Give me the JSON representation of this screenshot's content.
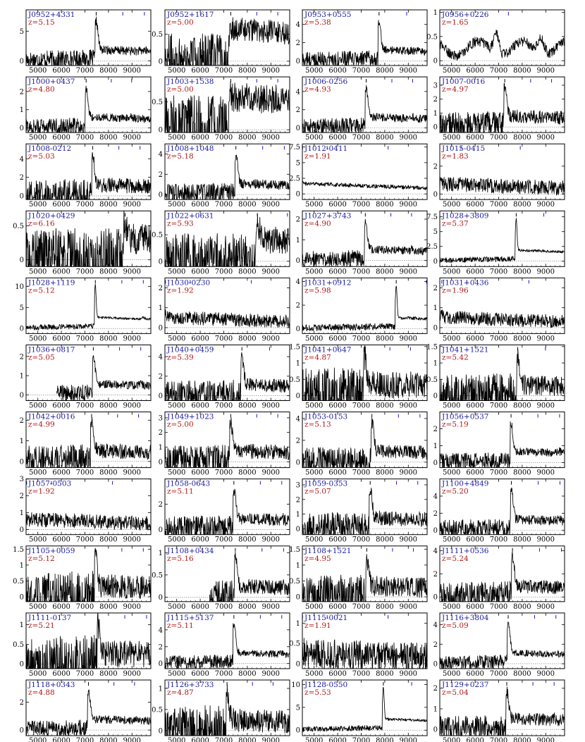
{
  "chart_data": {
    "type": "line",
    "layout": "grid 11 rows x 4 columns",
    "xlim": [
      4500,
      9800
    ],
    "x_ticks": [
      5000,
      6000,
      7000,
      8000,
      9000
    ],
    "y_zero_line": "dotted",
    "colors": {
      "name": "#1a1aa0",
      "redshift": "#b01818",
      "markers": "#1a1ac8",
      "spectrum": "#000000"
    },
    "panels": [
      {
        "name": "J0952+4331",
        "z_label": "z=5.15",
        "z": 5.15,
        "ylim": [
          -0.8,
          8.6
        ],
        "yticks": [
          0,
          5
        ],
        "ystart": 4500,
        "noise": 0.13
      },
      {
        "name": "J0952+1617",
        "z_label": "z=5.00",
        "z": 5.0,
        "ylim": [
          -0.08,
          0.95
        ],
        "yticks": [
          0.0,
          0.5
        ],
        "ystart": 4500,
        "noise": 0.35,
        "mode": "step"
      },
      {
        "name": "J0953+0555",
        "z_label": "z=5.38",
        "z": 5.38,
        "ylim": [
          -0.5,
          5.6
        ],
        "yticks": [
          0,
          2,
          4
        ],
        "ystart": 4500,
        "noise": 0.12
      },
      {
        "name": "J0956+0226",
        "z_label": "z=1.65",
        "z": 1.65,
        "ylim": [
          -0.1,
          1.05
        ],
        "yticks": [
          0.0,
          0.5,
          1.0
        ],
        "ystart": 4500,
        "noise": 0.15,
        "mode": "lowz"
      },
      {
        "name": "J1000+0437",
        "z_label": "z=4.80",
        "z": 4.8,
        "ylim": [
          -0.25,
          2.8
        ],
        "yticks": [
          0,
          1,
          2
        ],
        "ystart": 4500,
        "noise": 0.12
      },
      {
        "name": "J1003+1538",
        "z_label": "z=5.00",
        "z": 5.0,
        "ylim": [
          -0.05,
          0.95
        ],
        "yticks": [
          0.0,
          0.5
        ],
        "ystart": 4500,
        "noise": 0.45,
        "mode": "step"
      },
      {
        "name": "J1006-0256",
        "z_label": "z=4.93",
        "z": 4.93,
        "ylim": [
          -0.5,
          5.6
        ],
        "yticks": [
          0,
          2,
          4
        ],
        "ystart": 4500,
        "noise": 0.12
      },
      {
        "name": "J1007-0016",
        "z_label": "z=4.97",
        "z": 4.97,
        "ylim": [
          -0.4,
          3.6
        ],
        "yticks": [
          0,
          1,
          2,
          3
        ],
        "ystart": 4500,
        "noise": 0.2
      },
      {
        "name": "J1008-0212",
        "z_label": "z=5.03",
        "z": 5.03,
        "ylim": [
          -0.4,
          5.6
        ],
        "yticks": [
          0,
          2,
          4
        ],
        "ystart": 4500,
        "noise": 0.22
      },
      {
        "name": "J1008+1048",
        "z_label": "z=5.18",
        "z": 5.18,
        "ylim": [
          -0.5,
          5.0
        ],
        "yticks": [
          0,
          2,
          4
        ],
        "ystart": 4500,
        "noise": 0.14
      },
      {
        "name": "J1012-0411",
        "z_label": "z=1.91",
        "z": 1.91,
        "ylim": [
          -0.9,
          8.0
        ],
        "yticks": [
          0.0,
          2.5,
          5.0,
          7.5
        ],
        "ystart": 4500,
        "noise": 0.12,
        "mode": "spike"
      },
      {
        "name": "J1015-0415",
        "z_label": "z=1.83",
        "z": 1.83,
        "ylim": [
          -0.4,
          3.6
        ],
        "yticks": [
          0,
          2
        ],
        "ystart": 4500,
        "noise": 0.22
      },
      {
        "name": "J1020+0429",
        "z_label": "z=6.16",
        "z": 6.16,
        "ylim": [
          -0.1,
          0.72
        ],
        "yticks": [
          0.0,
          0.5
        ],
        "ystart": 4500,
        "noise": 0.45,
        "mode": "highz"
      },
      {
        "name": "J1022+0631",
        "z_label": "z=5.93",
        "z": 5.93,
        "ylim": [
          -0.1,
          0.95
        ],
        "yticks": [
          0.0,
          0.5
        ],
        "ystart": 4500,
        "noise": 0.4,
        "mode": "highz"
      },
      {
        "name": "J1027+3743",
        "z_label": "z=4.90",
        "z": 4.9,
        "ylim": [
          -0.3,
          2.4
        ],
        "yticks": [
          0,
          1,
          2
        ],
        "ystart": 4500,
        "noise": 0.12
      },
      {
        "name": "J1028+3809",
        "z_label": "z=5.37",
        "z": 5.37,
        "ylim": [
          -0.9,
          8.5
        ],
        "yticks": [
          0.0,
          2.5,
          5.0,
          7.5
        ],
        "ystart": 4500,
        "noise": 0.08,
        "mode": "spike"
      },
      {
        "name": "J1028+1119",
        "z_label": "z=5.12",
        "z": 5.12,
        "ylim": [
          -1.2,
          12.0
        ],
        "yticks": [
          0,
          5,
          10
        ],
        "ystart": 4500,
        "noise": 0.08,
        "mode": "spike"
      },
      {
        "name": "J1030-0230",
        "z_label": "z=1.92",
        "z": 1.92,
        "ylim": [
          -0.3,
          2.5
        ],
        "yticks": [
          0,
          1,
          2
        ],
        "ystart": 4500,
        "noise": 0.2
      },
      {
        "name": "J1031+0912",
        "z_label": "z=5.98",
        "z": 5.98,
        "ylim": [
          -0.4,
          4.3
        ],
        "yticks": [
          0,
          2,
          4
        ],
        "ystart": 4500,
        "noise": 0.1,
        "mode": "spike"
      },
      {
        "name": "J1031+0436",
        "z_label": "z=1.96",
        "z": 1.96,
        "ylim": [
          -0.3,
          2.5
        ],
        "yticks": [
          0,
          1,
          2
        ],
        "ystart": 4500,
        "noise": 0.2
      },
      {
        "name": "J1036+0817",
        "z_label": "z=5.05",
        "z": 5.05,
        "ylim": [
          -0.3,
          2.6
        ],
        "yticks": [
          0,
          1,
          2
        ],
        "ystart": 5800,
        "noise": 0.12
      },
      {
        "name": "J1040+0459",
        "z_label": "z=5.39",
        "z": 5.39,
        "ylim": [
          -0.5,
          5.2
        ],
        "yticks": [
          0,
          2,
          4
        ],
        "ystart": 4500,
        "noise": 0.2
      },
      {
        "name": "J1041+0647",
        "z_label": "z=4.87",
        "z": 4.87,
        "ylim": [
          -0.15,
          1.55
        ],
        "yticks": [
          0.0,
          0.5,
          1.0,
          1.5
        ],
        "ystart": 4500,
        "noise": 0.4
      },
      {
        "name": "J1041+1521",
        "z_label": "z=5.42",
        "z": 5.42,
        "ylim": [
          -0.15,
          1.55
        ],
        "yticks": [
          0.0,
          0.5,
          1.0,
          1.5
        ],
        "ystart": 4500,
        "noise": 0.3
      },
      {
        "name": "J1042+0016",
        "z_label": "z=4.99",
        "z": 4.99,
        "ylim": [
          -0.3,
          2.4
        ],
        "yticks": [
          0,
          1,
          2
        ],
        "ystart": 4500,
        "noise": 0.22
      },
      {
        "name": "J1049+1023",
        "z_label": "z=5.00",
        "z": 5.0,
        "ylim": [
          -0.4,
          3.4
        ],
        "yticks": [
          0,
          1,
          2,
          3
        ],
        "ystart": 4500,
        "noise": 0.22
      },
      {
        "name": "J1053-0153",
        "z_label": "z=5.13",
        "z": 5.13,
        "ylim": [
          -0.5,
          4.6
        ],
        "yticks": [
          0,
          2,
          4
        ],
        "ystart": 4500,
        "noise": 0.2
      },
      {
        "name": "J1056+0537",
        "z_label": "z=5.19",
        "z": 5.19,
        "ylim": [
          -0.3,
          3.0
        ],
        "yticks": [
          0,
          1,
          2
        ],
        "ystart": 4500,
        "noise": 0.12
      },
      {
        "name": "J1057-0503",
        "z_label": "z=1.92",
        "z": 1.92,
        "ylim": [
          -0.3,
          3.0
        ],
        "yticks": [
          0,
          1,
          2,
          3
        ],
        "ystart": 4500,
        "noise": 0.22
      },
      {
        "name": "J1058-0643",
        "z_label": "z=5.11",
        "z": 5.11,
        "ylim": [
          -0.4,
          4.0
        ],
        "yticks": [
          0,
          2
        ],
        "ystart": 4500,
        "noise": 0.18
      },
      {
        "name": "J1059-0353",
        "z_label": "z=5.07",
        "z": 5.07,
        "ylim": [
          -0.4,
          3.4
        ],
        "yticks": [
          0,
          1,
          2,
          3
        ],
        "ystart": 4500,
        "noise": 0.22
      },
      {
        "name": "J1100+4849",
        "z_label": "z=5.20",
        "z": 5.2,
        "ylim": [
          -0.5,
          6.0
        ],
        "yticks": [
          0,
          2,
          4
        ],
        "ystart": 4500,
        "noise": 0.14
      },
      {
        "name": "J1105+0059",
        "z_label": "z=5.12",
        "z": 5.12,
        "ylim": [
          -0.15,
          1.6
        ],
        "yticks": [
          0.0,
          0.5,
          1.0,
          1.5
        ],
        "ystart": 4500,
        "noise": 0.35
      },
      {
        "name": "J1108+0434",
        "z_label": "z=5.16",
        "z": 5.16,
        "ylim": [
          -0.1,
          1.15
        ],
        "yticks": [
          0.0,
          0.5,
          1.0
        ],
        "ystart": 6400,
        "noise": 0.22
      },
      {
        "name": "J1108+1521",
        "z_label": "z=4.95",
        "z": 4.95,
        "ylim": [
          -0.15,
          1.6
        ],
        "yticks": [
          0.0,
          0.5,
          1.0,
          1.5
        ],
        "ystart": 4500,
        "noise": 0.3
      },
      {
        "name": "J1111+0536",
        "z_label": "z=5.24",
        "z": 5.24,
        "ylim": [
          -0.4,
          4.4
        ],
        "yticks": [
          0,
          2,
          4
        ],
        "ystart": 4500,
        "noise": 0.2
      },
      {
        "name": "J1111-0137",
        "z_label": "z=5.21",
        "z": 5.21,
        "ylim": [
          -0.12,
          1.3
        ],
        "yticks": [
          0.0,
          0.5,
          1.0
        ],
        "ystart": 4500,
        "noise": 0.4
      },
      {
        "name": "J1115+5137",
        "z_label": "z=5.11",
        "z": 5.11,
        "ylim": [
          -0.6,
          6.0
        ],
        "yticks": [
          0,
          2,
          4
        ],
        "ystart": 4500,
        "noise": 0.1
      },
      {
        "name": "J1115-0021",
        "z_label": "z=1.91",
        "z": 1.91,
        "ylim": [
          -0.12,
          1.25
        ],
        "yticks": [
          0.0,
          0.5,
          1.0
        ],
        "ystart": 4500,
        "noise": 0.45
      },
      {
        "name": "J1116+3804",
        "z_label": "z=5.09",
        "z": 5.09,
        "ylim": [
          -0.5,
          5.2
        ],
        "yticks": [
          0,
          2,
          4
        ],
        "ystart": 4500,
        "noise": 0.1
      },
      {
        "name": "J1118+0343",
        "z_label": "z=4.88",
        "z": 4.88,
        "ylim": [
          -0.4,
          3.6
        ],
        "yticks": [
          0,
          2
        ],
        "ystart": 4500,
        "noise": 0.12
      },
      {
        "name": "J1126+3733",
        "z_label": "z=4.87",
        "z": 4.87,
        "ylim": [
          -0.12,
          1.2
        ],
        "yticks": [
          0.0,
          0.5,
          1.0
        ],
        "ystart": 4500,
        "noise": 0.35
      },
      {
        "name": "J1128-0550",
        "z_label": "z=5.53",
        "z": 5.53,
        "ylim": [
          -1.2,
          11.0
        ],
        "yticks": [
          0,
          5,
          10
        ],
        "ystart": 4500,
        "noise": 0.08,
        "mode": "spike"
      },
      {
        "name": "J1129+0237",
        "z_label": "z=5.04",
        "z": 5.04,
        "ylim": [
          -0.3,
          2.4
        ],
        "yticks": [
          0,
          1,
          2
        ],
        "ystart": 4500,
        "noise": 0.18
      }
    ]
  }
}
